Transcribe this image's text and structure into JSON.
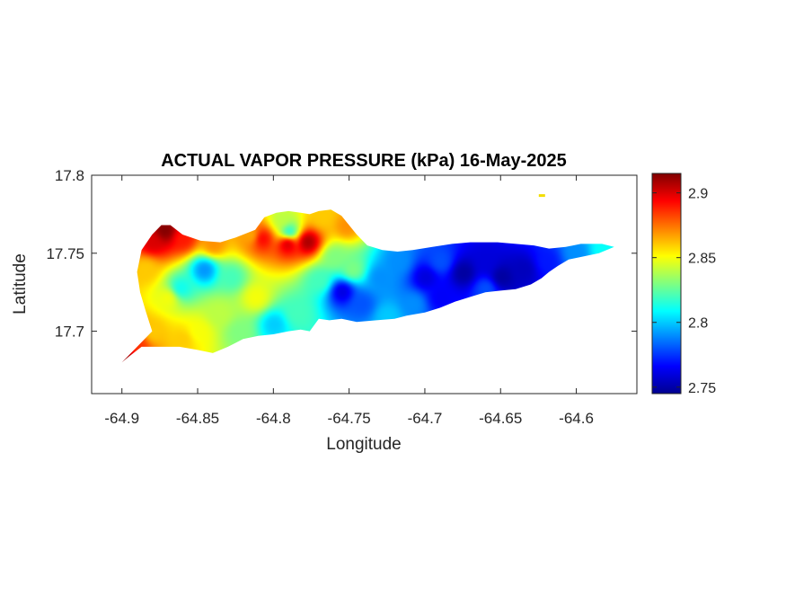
{
  "chart_data": {
    "type": "heatmap",
    "title": "ACTUAL VAPOR PRESSURE (kPa) 16-May-2025",
    "xlabel": "Longitude",
    "ylabel": "Latitude",
    "xlim": [
      -64.92,
      -64.56
    ],
    "ylim": [
      17.66,
      17.8
    ],
    "xticks": [
      -64.9,
      -64.85,
      -64.8,
      -64.75,
      -64.7,
      -64.65,
      -64.6
    ],
    "xtick_labels": [
      "-64.9",
      "-64.85",
      "-64.8",
      "-64.75",
      "-64.7",
      "-64.65",
      "-64.6"
    ],
    "yticks": [
      17.7,
      17.75,
      17.8
    ],
    "ytick_labels": [
      "17.7",
      "17.75",
      "17.8"
    ],
    "colorbar": {
      "colormap": "jet",
      "range": [
        2.745,
        2.915
      ],
      "ticks": [
        2.75,
        2.8,
        2.85,
        2.9
      ],
      "tick_labels": [
        "2.75",
        "2.8",
        "2.85",
        "2.9"
      ]
    },
    "outline": [
      [
        -64.9,
        17.68
      ],
      [
        -64.89,
        17.69
      ],
      [
        -64.88,
        17.7
      ],
      [
        -64.884,
        17.712
      ],
      [
        -64.888,
        17.725
      ],
      [
        -64.89,
        17.738
      ],
      [
        -64.887,
        17.752
      ],
      [
        -64.88,
        17.762
      ],
      [
        -64.874,
        17.768
      ],
      [
        -64.868,
        17.768
      ],
      [
        -64.86,
        17.762
      ],
      [
        -64.848,
        17.758
      ],
      [
        -64.835,
        17.757
      ],
      [
        -64.825,
        17.76
      ],
      [
        -64.812,
        17.765
      ],
      [
        -64.806,
        17.773
      ],
      [
        -64.798,
        17.776
      ],
      [
        -64.79,
        17.777
      ],
      [
        -64.782,
        17.776
      ],
      [
        -64.776,
        17.775
      ],
      [
        -64.77,
        17.777
      ],
      [
        -64.762,
        17.778
      ],
      [
        -64.755,
        17.774
      ],
      [
        -64.75,
        17.768
      ],
      [
        -64.745,
        17.762
      ],
      [
        -64.738,
        17.755
      ],
      [
        -64.728,
        17.752
      ],
      [
        -64.718,
        17.751
      ],
      [
        -64.708,
        17.752
      ],
      [
        -64.695,
        17.754
      ],
      [
        -64.682,
        17.756
      ],
      [
        -64.67,
        17.757
      ],
      [
        -64.66,
        17.757
      ],
      [
        -64.652,
        17.757
      ],
      [
        -64.64,
        17.756
      ],
      [
        -64.628,
        17.755
      ],
      [
        -64.618,
        17.753
      ],
      [
        -64.607,
        17.754
      ],
      [
        -64.597,
        17.756
      ],
      [
        -64.583,
        17.756
      ],
      [
        -64.575,
        17.754
      ],
      [
        -64.585,
        17.75
      ],
      [
        -64.595,
        17.748
      ],
      [
        -64.605,
        17.746
      ],
      [
        -64.612,
        17.742
      ],
      [
        -64.618,
        17.738
      ],
      [
        -64.623,
        17.734
      ],
      [
        -64.63,
        17.73
      ],
      [
        -64.64,
        17.727
      ],
      [
        -64.65,
        17.726
      ],
      [
        -64.66,
        17.725
      ],
      [
        -64.67,
        17.722
      ],
      [
        -64.68,
        17.719
      ],
      [
        -64.69,
        17.715
      ],
      [
        -64.7,
        17.712
      ],
      [
        -64.712,
        17.71
      ],
      [
        -64.72,
        17.708
      ],
      [
        -64.732,
        17.707
      ],
      [
        -64.745,
        17.706
      ],
      [
        -64.755,
        17.708
      ],
      [
        -64.763,
        17.707
      ],
      [
        -64.77,
        17.708
      ],
      [
        -64.776,
        17.7
      ],
      [
        -64.782,
        17.701
      ],
      [
        -64.79,
        17.7
      ],
      [
        -64.8,
        17.698
      ],
      [
        -64.81,
        17.697
      ],
      [
        -64.82,
        17.695
      ],
      [
        -64.83,
        17.69
      ],
      [
        -64.84,
        17.686
      ],
      [
        -64.85,
        17.688
      ],
      [
        -64.862,
        17.69
      ],
      [
        -64.875,
        17.69
      ],
      [
        -64.887,
        17.69
      ],
      [
        -64.895,
        17.684
      ]
    ],
    "islet": [
      -64.623,
      17.787
    ],
    "samples": [
      [
        -64.898,
        17.682,
        2.91
      ],
      [
        -64.89,
        17.692,
        2.885
      ],
      [
        -64.88,
        17.7,
        2.86
      ],
      [
        -64.885,
        17.74,
        2.86
      ],
      [
        -64.88,
        17.758,
        2.9
      ],
      [
        -64.872,
        17.765,
        2.915
      ],
      [
        -64.86,
        17.76,
        2.89
      ],
      [
        -64.84,
        17.756,
        2.87
      ],
      [
        -64.815,
        17.762,
        2.865
      ],
      [
        -64.795,
        17.772,
        2.84
      ],
      [
        -64.768,
        17.774,
        2.86
      ],
      [
        -64.752,
        17.768,
        2.87
      ],
      [
        -64.808,
        17.76,
        2.895
      ],
      [
        -64.79,
        17.764,
        2.81
      ],
      [
        -64.778,
        17.758,
        2.91
      ],
      [
        -64.791,
        17.757,
        2.905
      ],
      [
        -64.862,
        17.728,
        2.81
      ],
      [
        -64.846,
        17.74,
        2.79
      ],
      [
        -64.828,
        17.735,
        2.82
      ],
      [
        -64.836,
        17.712,
        2.84
      ],
      [
        -64.812,
        17.722,
        2.85
      ],
      [
        -64.8,
        17.705,
        2.8
      ],
      [
        -64.785,
        17.712,
        2.82
      ],
      [
        -64.77,
        17.733,
        2.82
      ],
      [
        -64.76,
        17.748,
        2.83
      ],
      [
        -64.748,
        17.74,
        2.83
      ],
      [
        -64.755,
        17.726,
        2.76
      ],
      [
        -64.742,
        17.718,
        2.78
      ],
      [
        -64.73,
        17.735,
        2.79
      ],
      [
        -64.718,
        17.745,
        2.79
      ],
      [
        -64.7,
        17.735,
        2.76
      ],
      [
        -64.708,
        17.718,
        2.79
      ],
      [
        -64.69,
        17.722,
        2.765
      ],
      [
        -64.69,
        17.745,
        2.78
      ],
      [
        -64.675,
        17.738,
        2.75
      ],
      [
        -64.66,
        17.745,
        2.76
      ],
      [
        -64.65,
        17.735,
        2.75
      ],
      [
        -64.635,
        17.74,
        2.755
      ],
      [
        -64.62,
        17.745,
        2.77
      ],
      [
        -64.6,
        17.75,
        2.79
      ],
      [
        -64.583,
        17.753,
        2.81
      ],
      [
        -64.66,
        17.728,
        2.78
      ],
      [
        -64.725,
        17.71,
        2.8
      ],
      [
        -64.86,
        17.695,
        2.86
      ],
      [
        -64.87,
        17.722,
        2.85
      ],
      [
        -64.85,
        17.7,
        2.85
      ],
      [
        -64.823,
        17.7,
        2.83
      ],
      [
        -64.623,
        17.787,
        2.86
      ]
    ]
  }
}
